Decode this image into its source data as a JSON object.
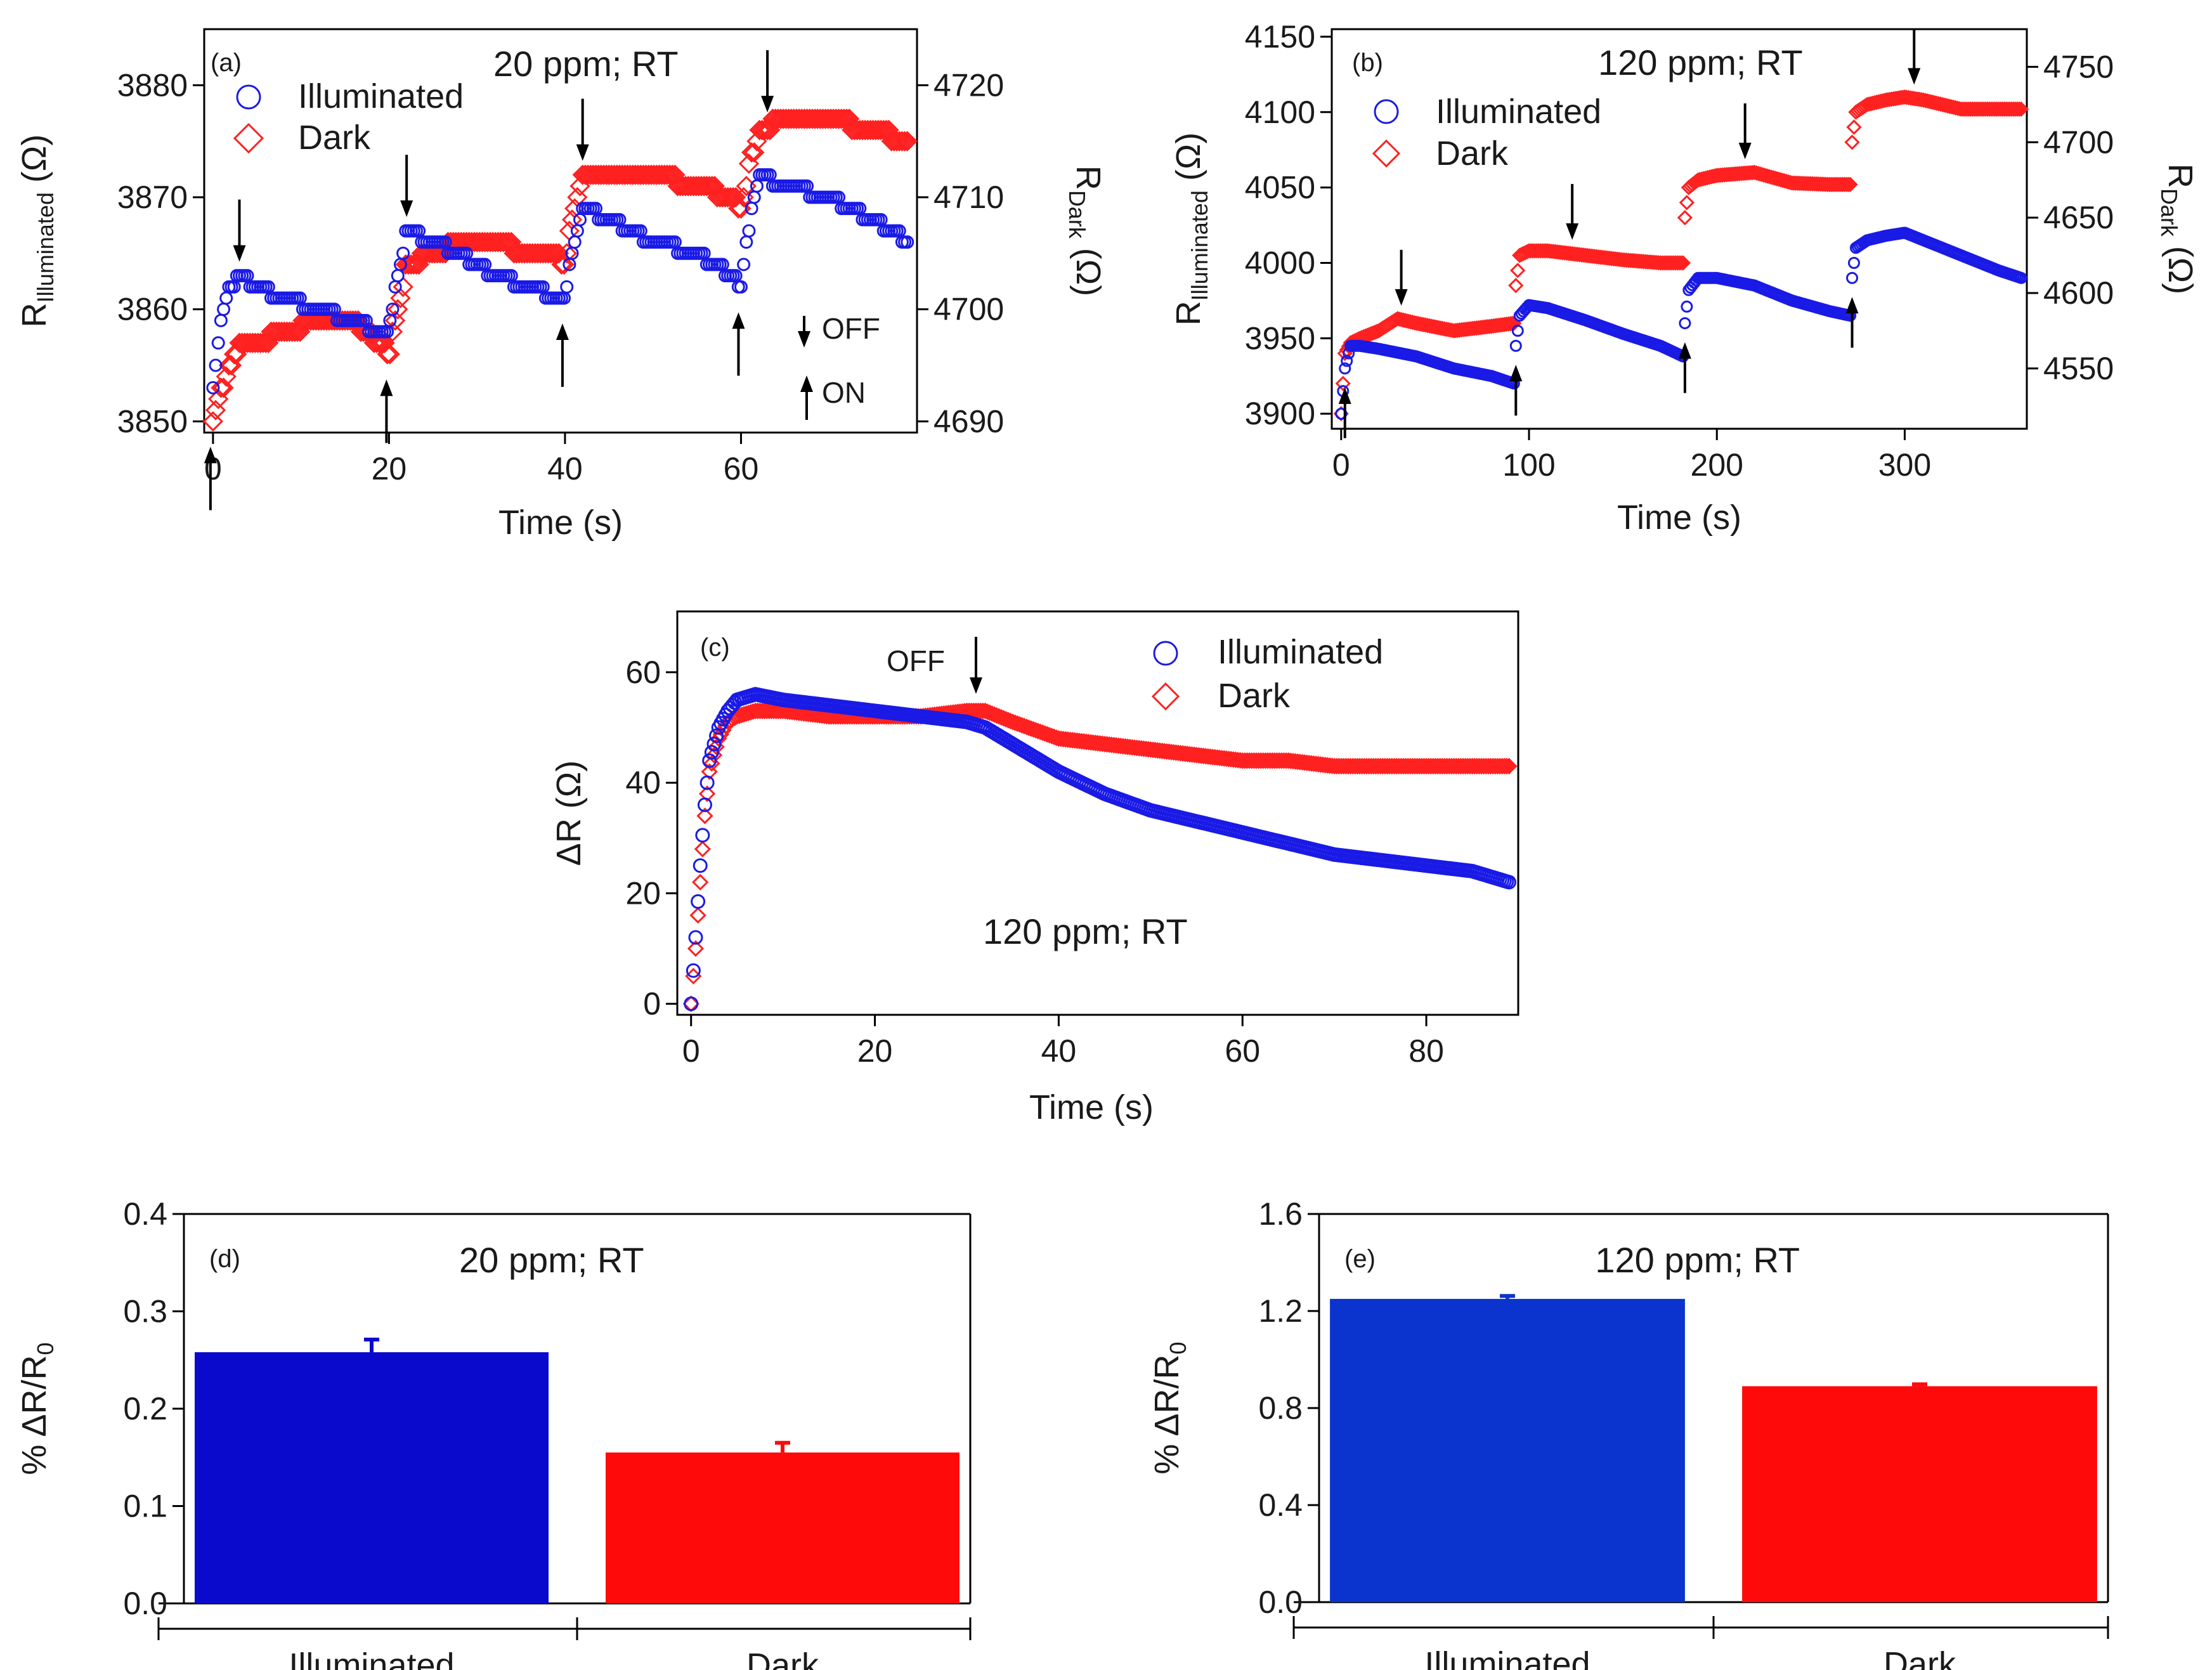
{
  "chart_data": [
    {
      "id": "a",
      "type": "scatter",
      "panel_label": "(a)",
      "condition_label": "20 ppm; RT",
      "xlabel": "Time (s)",
      "ylabel_left": "R",
      "ylabel_left_sub": "Illuminated",
      "ylabel_right": "R",
      "ylabel_right_sub": "Dark",
      "ylabel_unit": "(Ω)",
      "xlim": [
        -1,
        80
      ],
      "ylim_left": [
        3849,
        3885
      ],
      "ylim_right": [
        4689,
        4725
      ],
      "xticks": [
        0,
        20,
        40,
        60
      ],
      "yticks_left": [
        3850,
        3860,
        3870,
        3880
      ],
      "yticks_right": [
        4690,
        4700,
        4710,
        4720
      ],
      "legend": [
        {
          "name": "Illuminated",
          "marker": "circle",
          "color": "#1a1ae6"
        },
        {
          "name": "Dark",
          "marker": "diamond",
          "color": "#ff2020"
        }
      ],
      "annotations": {
        "off": "OFF",
        "on": "ON"
      },
      "off_times": [
        3,
        22,
        42,
        63
      ],
      "on_times": [
        0,
        20,
        40,
        60
      ],
      "series": [
        {
          "name": "Illuminated",
          "axis": "left",
          "x": [
            0,
            1,
            2,
            3,
            5,
            8,
            12,
            16,
            19,
            20,
            21,
            22,
            25,
            28,
            32,
            36,
            39,
            40,
            41,
            42,
            45,
            50,
            55,
            59,
            60,
            61,
            62,
            65,
            70,
            75,
            79
          ],
          "y": [
            3853,
            3860,
            3862,
            3863,
            3862,
            3861,
            3860,
            3859,
            3858,
            3858,
            3863,
            3867,
            3866,
            3865,
            3863,
            3862,
            3861,
            3861,
            3866,
            3869,
            3868,
            3866,
            3865,
            3863,
            3862,
            3868,
            3872,
            3871,
            3870,
            3868,
            3866
          ]
        },
        {
          "name": "Dark",
          "axis": "right",
          "x": [
            0,
            1,
            2,
            3,
            5,
            8,
            12,
            16,
            19,
            20,
            21,
            22,
            25,
            28,
            32,
            36,
            39,
            40,
            41,
            42,
            45,
            50,
            55,
            59,
            60,
            61,
            62,
            65,
            70,
            75,
            79
          ],
          "y": [
            4690,
            4693,
            4695,
            4697,
            4697,
            4698,
            4699,
            4699,
            4697,
            4696,
            4700,
            4704,
            4705,
            4706,
            4706,
            4705,
            4705,
            4704,
            4709,
            4712,
            4712,
            4712,
            4711,
            4710,
            4709,
            4713,
            4716,
            4717,
            4717,
            4716,
            4715
          ]
        }
      ]
    },
    {
      "id": "b",
      "type": "scatter",
      "panel_label": "(b)",
      "condition_label": "120 ppm; RT",
      "xlabel": "Time (s)",
      "ylabel_left": "R",
      "ylabel_left_sub": "Illuminated",
      "ylabel_right": "R",
      "ylabel_right_sub": "Dark",
      "ylabel_unit": "(Ω)",
      "xlim": [
        -5,
        365
      ],
      "ylim_left": [
        3890,
        4155
      ],
      "ylim_right": [
        4510,
        4775
      ],
      "xticks": [
        0,
        100,
        200,
        300
      ],
      "yticks_left": [
        3900,
        3950,
        4000,
        4050,
        4100,
        4150
      ],
      "yticks_right": [
        4550,
        4600,
        4650,
        4700,
        4750
      ],
      "legend": [
        {
          "name": "Illuminated",
          "marker": "circle",
          "color": "#1a1ae6"
        },
        {
          "name": "Dark",
          "marker": "diamond",
          "color": "#ff2020"
        }
      ],
      "off_times": [
        32,
        123,
        215,
        305
      ],
      "on_times": [
        2,
        93,
        183,
        272
      ],
      "series": [
        {
          "name": "Illuminated",
          "axis": "left",
          "x": [
            0,
            2,
            5,
            10,
            20,
            40,
            60,
            80,
            92,
            93,
            95,
            100,
            110,
            130,
            150,
            170,
            182,
            183,
            185,
            190,
            200,
            220,
            240,
            260,
            271,
            272,
            274,
            280,
            290,
            300,
            310,
            330,
            350,
            362
          ],
          "y": [
            3900,
            3930,
            3945,
            3945,
            3943,
            3938,
            3930,
            3925,
            3920,
            3945,
            3965,
            3972,
            3970,
            3962,
            3953,
            3945,
            3938,
            3960,
            3982,
            3990,
            3990,
            3985,
            3975,
            3968,
            3965,
            3990,
            4010,
            4015,
            4018,
            4020,
            4015,
            4005,
            3995,
            3990
          ]
        },
        {
          "name": "Dark",
          "axis": "right",
          "x": [
            0,
            2,
            5,
            10,
            20,
            30,
            40,
            60,
            80,
            92,
            93,
            95,
            100,
            110,
            130,
            150,
            170,
            182,
            183,
            185,
            190,
            200,
            220,
            240,
            260,
            271,
            272,
            274,
            280,
            290,
            300,
            310,
            330,
            350,
            362
          ],
          "y": [
            4520,
            4560,
            4567,
            4570,
            4575,
            4583,
            4580,
            4575,
            4578,
            4580,
            4605,
            4625,
            4628,
            4628,
            4625,
            4622,
            4620,
            4620,
            4650,
            4670,
            4675,
            4678,
            4680,
            4673,
            4672,
            4672,
            4700,
            4720,
            4725,
            4728,
            4730,
            4728,
            4722,
            4722,
            4722
          ]
        }
      ]
    },
    {
      "id": "c",
      "type": "scatter",
      "panel_label": "(c)",
      "condition_label": "120 ppm; RT",
      "xlabel": "Time (s)",
      "ylabel": "ΔR (Ω)",
      "xlim": [
        -1.5,
        90
      ],
      "ylim": [
        -2,
        71
      ],
      "xticks": [
        0,
        20,
        40,
        60,
        80
      ],
      "yticks": [
        0,
        20,
        40,
        60
      ],
      "legend": [
        {
          "name": "Illuminated",
          "marker": "circle",
          "color": "#1a1ae6"
        },
        {
          "name": "Dark",
          "marker": "diamond",
          "color": "#ff2020"
        }
      ],
      "annotations": {
        "off": "OFF"
      },
      "off_time": 31,
      "series": [
        {
          "name": "Illuminated",
          "x": [
            0,
            0.5,
            1,
            1.5,
            2,
            3,
            4,
            5,
            7,
            10,
            15,
            20,
            25,
            30,
            32,
            35,
            40,
            45,
            50,
            55,
            60,
            65,
            70,
            75,
            80,
            85,
            89
          ],
          "y": [
            0,
            12,
            25,
            36,
            44,
            50,
            53,
            55,
            56,
            55,
            54,
            53,
            52,
            51,
            50,
            47,
            42,
            38,
            35,
            33,
            31,
            29,
            27,
            26,
            25,
            24,
            22
          ]
        },
        {
          "name": "Dark",
          "x": [
            0,
            0.5,
            1,
            1.5,
            2,
            3,
            4,
            5,
            7,
            10,
            15,
            20,
            25,
            30,
            32,
            35,
            40,
            45,
            50,
            55,
            60,
            65,
            70,
            75,
            80,
            85,
            89
          ],
          "y": [
            0,
            10,
            22,
            34,
            42,
            48,
            51,
            52,
            53,
            53,
            52,
            52,
            52,
            53,
            53,
            51,
            48,
            47,
            46,
            45,
            44,
            44,
            43,
            43,
            43,
            43,
            43
          ]
        }
      ]
    },
    {
      "id": "d",
      "type": "bar",
      "panel_label": "(d)",
      "condition_label": "20 ppm; RT",
      "ylabel": "% ΔR/R",
      "ylabel_sub": "0",
      "ylim": [
        0,
        0.4
      ],
      "yticks": [
        "0.0",
        "0.1",
        "0.2",
        "0.3",
        "0.4"
      ],
      "categories": [
        "Illuminated",
        "Dark"
      ],
      "values": [
        0.258,
        0.155
      ],
      "errors": [
        0.013,
        0.01
      ],
      "colors": [
        "#0a0acd",
        "#ff0a0a"
      ]
    },
    {
      "id": "e",
      "type": "bar",
      "panel_label": "(e)",
      "condition_label": "120 ppm; RT",
      "ylabel": "% ΔR/R",
      "ylabel_sub": "0",
      "ylim": [
        0,
        1.6
      ],
      "yticks": [
        "0.0",
        "0.4",
        "0.8",
        "1.2",
        "1.6"
      ],
      "categories": [
        "Illuminated",
        "Dark"
      ],
      "values": [
        1.25,
        0.89
      ],
      "errors": [
        0.012,
        0.008
      ],
      "colors": [
        "#0a34cd",
        "#ff0a0a"
      ]
    }
  ]
}
